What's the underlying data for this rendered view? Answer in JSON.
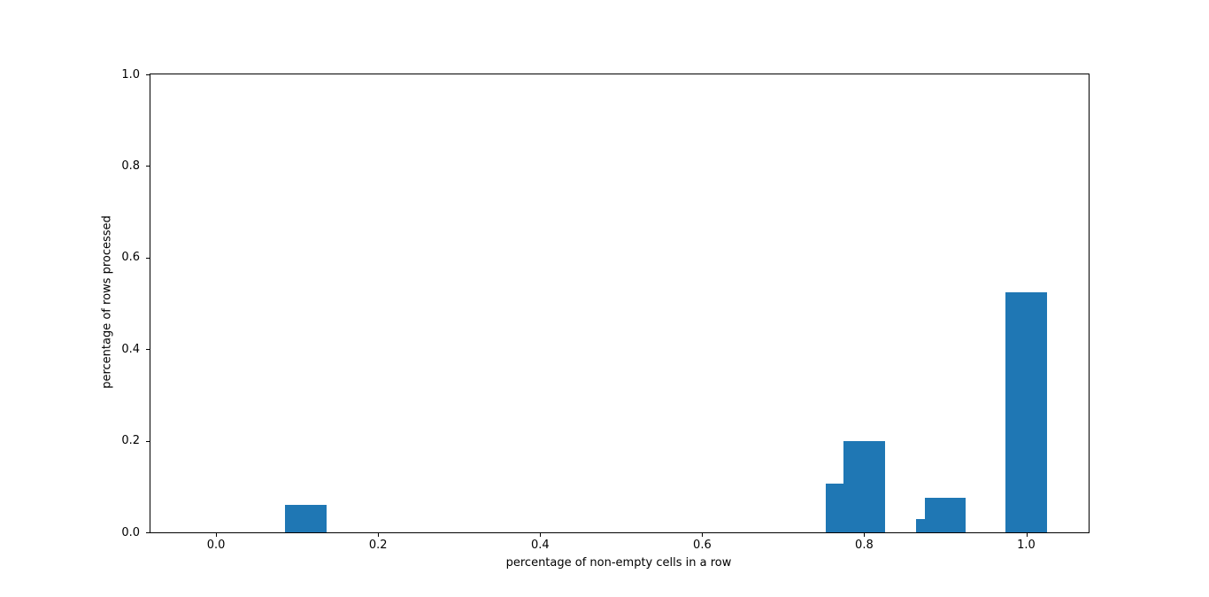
{
  "chart_data": {
    "type": "bar",
    "title": "",
    "xlabel": "percentage of non-empty cells in a row",
    "ylabel": "percentage of rows processed",
    "bar_color": "#1f77b4",
    "bar_width": 0.051,
    "x": [
      0.111,
      0.778,
      0.8,
      0.889,
      0.9,
      1.0
    ],
    "values": [
      0.061,
      0.107,
      0.2,
      0.03,
      0.076,
      0.525
    ],
    "xlim": [
      -0.081,
      1.077
    ],
    "ylim": [
      0,
      1
    ],
    "xticks": [
      0.0,
      0.2,
      0.4,
      0.6,
      0.8,
      1.0
    ],
    "yticks": [
      0.0,
      0.2,
      0.4,
      0.6,
      0.8,
      1.0
    ],
    "xtick_labels": [
      "0.0",
      "0.2",
      "0.4",
      "0.6",
      "0.8",
      "1.0"
    ],
    "ytick_labels": [
      "0.0",
      "0.2",
      "0.4",
      "0.6",
      "0.8",
      "1.0"
    ],
    "grid": false,
    "legend": null
  }
}
